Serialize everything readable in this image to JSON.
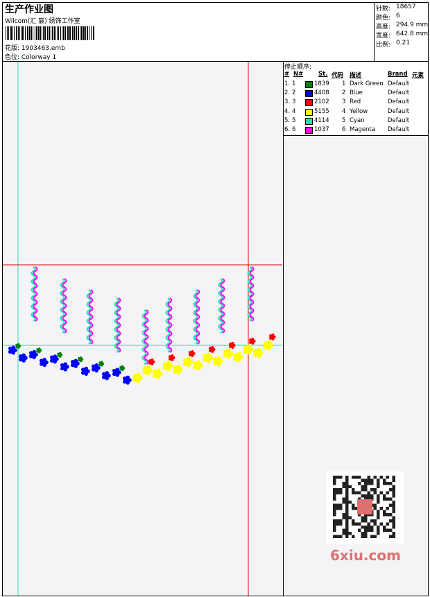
{
  "header": {
    "title": "生产作业图",
    "company": "Wilcom(汇 宸) 绣饰工作室",
    "design": "花版: 1903463.emb",
    "colorway": "色位: Colorway 1"
  },
  "info": [
    {
      "label": "针数:",
      "value": "18657"
    },
    {
      "label": "颜色:",
      "value": "6"
    },
    {
      "label": "高度:",
      "value": "294.9 mm"
    },
    {
      "label": "宽度:",
      "value": "642.8 mm"
    },
    {
      "label": "比例:",
      "value": "0.21"
    }
  ],
  "stop_table": {
    "title": "停止顺序:",
    "columns": [
      "#",
      "N#",
      "St.",
      "代码",
      "描述",
      "Brand",
      "元素"
    ],
    "rows": [
      {
        "stop": "1.",
        "n": "1",
        "color": "#008000",
        "st": "1839",
        "code": "1",
        "desc": "Dark Green",
        "brand": "Default"
      },
      {
        "stop": "2.",
        "n": "2",
        "color": "#0000ff",
        "st": "4408",
        "code": "2",
        "desc": "Blue",
        "brand": "Default"
      },
      {
        "stop": "3.",
        "n": "3",
        "color": "#ff0000",
        "st": "2102",
        "code": "3",
        "desc": "Red",
        "brand": "Default"
      },
      {
        "stop": "4.",
        "n": "4",
        "color": "#ffff00",
        "st": "5155",
        "code": "4",
        "desc": "Yellow",
        "brand": "Default"
      },
      {
        "stop": "5.",
        "n": "5",
        "color": "#20e0b0",
        "st": "4114",
        "code": "5",
        "desc": "Cyan",
        "brand": "Default"
      },
      {
        "stop": "6.",
        "n": "6",
        "color": "#ff00ff",
        "st": "1037",
        "code": "6",
        "desc": "Magenta",
        "brand": "Default"
      }
    ]
  },
  "watermark": "6xiu.com"
}
